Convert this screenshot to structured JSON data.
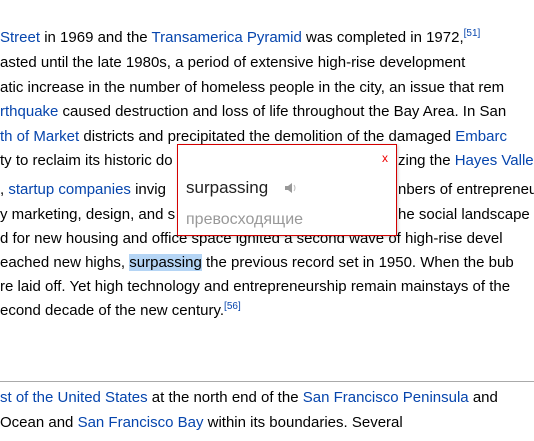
{
  "article": {
    "lines": [
      {
        "segments": [
          {
            "text": " Street",
            "link": true
          },
          {
            "text": " in 1969 and the "
          },
          {
            "text": "Transamerica Pyramid",
            "link": true
          },
          {
            "text": " was completed in 1972,"
          },
          {
            "text": "[51]",
            "link": true,
            "sup": true
          }
        ]
      },
      {
        "segments": [
          {
            "text": "asted until the late 1980s, a period of extensive high-rise development"
          }
        ]
      },
      {
        "segments": [
          {
            "text": "atic increase in the number of homeless people in the city, an issue that rem"
          }
        ]
      },
      {
        "segments": [
          {
            "text": "rthquake",
            "link": true
          },
          {
            "text": " caused destruction and loss of life throughout the Bay Area. In San"
          }
        ]
      },
      {
        "segments": [
          {
            "text": "th of Market",
            "link": true
          },
          {
            "text": " districts and precipitated the demolition of the damaged "
          },
          {
            "text": "Embarc",
            "link": true
          }
        ]
      },
      {
        "segments": [
          {
            "text": "ty to reclaim its historic do"
          }
        ],
        "right": [
          {
            "text": "zing the "
          },
          {
            "text": "Hayes Valle",
            "link": true
          }
        ]
      },
      {
        "segments": [
          {
            "text": ", "
          },
          {
            "text": "startup companies",
            "link": true
          },
          {
            "text": " invig"
          }
        ],
        "right": [
          {
            "text": "nbers of entrepreneu"
          }
        ]
      },
      {
        "segments": [
          {
            "text": "y marketing, design, and s"
          }
        ],
        "right": [
          {
            "text": "he social landscape"
          }
        ]
      },
      {
        "segments": [
          {
            "text": "d for new housing and office space ignited a second wave of high-rise devel"
          }
        ]
      },
      {
        "segments": [
          {
            "text": "eached new highs, "
          },
          {
            "text": "surpassing",
            "highlight": true
          },
          {
            "text": " the previous record set in 1950. When the bub"
          }
        ]
      },
      {
        "segments": [
          {
            "text": "re laid off. Yet high technology and entrepreneurship remain mainstays of the"
          }
        ]
      },
      {
        "segments": [
          {
            "text": "econd decade of the new century."
          },
          {
            "text": "[56]",
            "link": true,
            "sup": true
          }
        ]
      },
      {
        "segments": [
          {
            "text": "st of the United States",
            "link": true
          },
          {
            "text": " at the north end of the "
          },
          {
            "text": "San Francisco Peninsula",
            "link": true
          },
          {
            "text": " and"
          }
        ]
      },
      {
        "segments": [
          {
            "text": " Ocean and "
          },
          {
            "text": "San Francisco Bay",
            "link": true
          },
          {
            "text": " within its boundaries. Several"
          }
        ]
      }
    ]
  },
  "popup": {
    "close": "x",
    "word": "surpassing",
    "translation": "превосходящие"
  }
}
